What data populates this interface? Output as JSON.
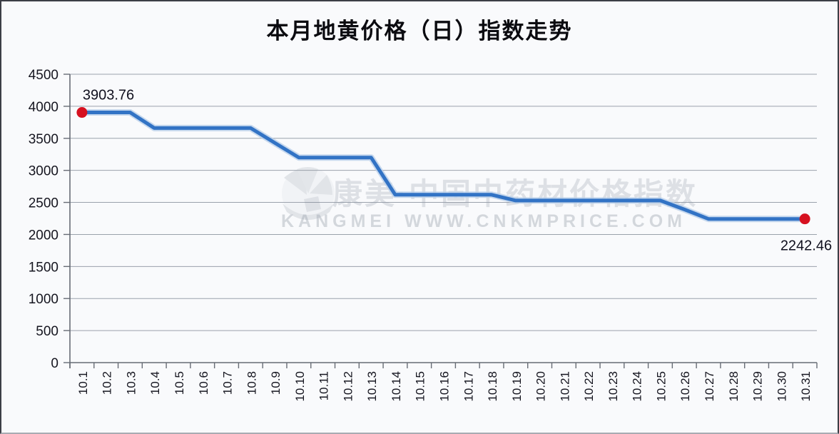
{
  "page": {
    "title": "本月地黄价格（日）指数走势"
  },
  "watermark": {
    "logo_icon": "kangmei-fan-logo",
    "line1": "康美·中国中药材价格指数",
    "line2": "KANGMEI WWW.CNKMPRICE.COM"
  },
  "colors": {
    "line": "#3273c5",
    "line_halo": "#b9d0ea",
    "marker": "#d61120",
    "grid": "#9aa1ab",
    "axis": "#676c75",
    "tick_text": "#15151f",
    "annotation_text": "#10101e",
    "watermark": "#96a0ab",
    "background": "#f9fafc"
  },
  "chart_data": {
    "type": "line",
    "title": "本月地黄价格（日）指数走势",
    "x": [
      "10.1",
      "10.2",
      "10.3",
      "10.4",
      "10.5",
      "10.6",
      "10.7",
      "10.8",
      "10.9",
      "10.10",
      "10.11",
      "10.12",
      "10.13",
      "10.14",
      "10.15",
      "10.16",
      "10.17",
      "10.18",
      "10.19",
      "10.20",
      "10.21",
      "10.22",
      "10.23",
      "10.24",
      "10.25",
      "10.26",
      "10.27",
      "10.28",
      "10.29",
      "10.30",
      "10.31"
    ],
    "series": [
      {
        "values": [
          3903.76,
          3903.76,
          3903.76,
          3660,
          3660,
          3660,
          3660,
          3660,
          3430,
          3200,
          3200,
          3200,
          3200,
          2620,
          2620,
          2620,
          2620,
          2620,
          2530,
          2530,
          2530,
          2530,
          2530,
          2530,
          2530,
          2390,
          2242.46,
          2242.46,
          2242.46,
          2242.46,
          2242.46
        ]
      }
    ],
    "xlabel": "",
    "ylabel": "",
    "ylim": [
      0,
      4500
    ],
    "ytick_step": 500,
    "yticks": [
      0,
      500,
      1000,
      1500,
      2000,
      2500,
      3000,
      3500,
      4000,
      4500
    ],
    "grid": true,
    "legend": "none",
    "x_label_rotation": -90,
    "annotations": [
      {
        "point_index": 0,
        "label": "3903.76",
        "placement": "above-start"
      },
      {
        "point_index": 30,
        "label": "2242.46",
        "placement": "below-end"
      }
    ]
  }
}
